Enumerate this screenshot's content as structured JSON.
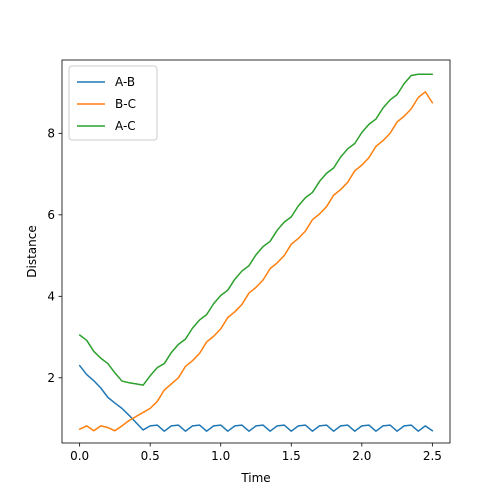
{
  "chart_data": {
    "type": "line",
    "xlabel": "Time",
    "ylabel": "Distance",
    "xlim": [
      -0.125,
      2.625
    ],
    "ylim": [
      0.4,
      9.8
    ],
    "xticks": [
      {
        "value": 0.0,
        "label": "0.0"
      },
      {
        "value": 0.5,
        "label": "0.5"
      },
      {
        "value": 1.0,
        "label": "1.0"
      },
      {
        "value": 1.5,
        "label": "1.5"
      },
      {
        "value": 2.0,
        "label": "2.0"
      },
      {
        "value": 2.5,
        "label": "2.5"
      }
    ],
    "yticks": [
      {
        "value": 2,
        "label": "2"
      },
      {
        "value": 4,
        "label": "4"
      },
      {
        "value": 6,
        "label": "6"
      },
      {
        "value": 8,
        "label": "8"
      }
    ],
    "grid": false,
    "legend_position": "top-left",
    "x": [
      0.0,
      0.05,
      0.1,
      0.15,
      0.2,
      0.25,
      0.3,
      0.35,
      0.4,
      0.45,
      0.5,
      0.55,
      0.6,
      0.65,
      0.7,
      0.75,
      0.8,
      0.85,
      0.9,
      0.95,
      1.0,
      1.05,
      1.1,
      1.15,
      1.2,
      1.25,
      1.3,
      1.35,
      1.4,
      1.45,
      1.5,
      1.55,
      1.6,
      1.65,
      1.7,
      1.75,
      1.8,
      1.85,
      1.9,
      1.95,
      2.0,
      2.05,
      2.1,
      2.15,
      2.2,
      2.25,
      2.3,
      2.35,
      2.4,
      2.45,
      2.5
    ],
    "series": [
      {
        "name": "A-B",
        "color": "#1f77b4",
        "values": [
          2.3,
          2.08,
          1.93,
          1.75,
          1.52,
          1.38,
          1.25,
          1.08,
          0.9,
          0.72,
          0.82,
          0.84,
          0.69,
          0.82,
          0.84,
          0.69,
          0.82,
          0.84,
          0.69,
          0.82,
          0.84,
          0.69,
          0.82,
          0.84,
          0.69,
          0.82,
          0.84,
          0.69,
          0.82,
          0.84,
          0.69,
          0.82,
          0.84,
          0.69,
          0.82,
          0.84,
          0.69,
          0.82,
          0.84,
          0.69,
          0.82,
          0.84,
          0.69,
          0.82,
          0.84,
          0.69,
          0.82,
          0.84,
          0.69,
          0.82,
          0.7
        ]
      },
      {
        "name": "B-C",
        "color": "#ff7f0e",
        "values": [
          0.74,
          0.82,
          0.7,
          0.82,
          0.78,
          0.7,
          0.82,
          0.95,
          1.05,
          1.15,
          1.25,
          1.42,
          1.7,
          1.85,
          2.0,
          2.28,
          2.42,
          2.6,
          2.88,
          3.02,
          3.2,
          3.48,
          3.62,
          3.8,
          4.08,
          4.22,
          4.4,
          4.68,
          4.82,
          5.0,
          5.28,
          5.42,
          5.6,
          5.88,
          6.02,
          6.2,
          6.48,
          6.62,
          6.8,
          7.08,
          7.22,
          7.4,
          7.68,
          7.82,
          8.0,
          8.28,
          8.42,
          8.6,
          8.88,
          9.02,
          8.75
        ]
      },
      {
        "name": "A-C",
        "color": "#2ca02c",
        "values": [
          3.05,
          2.92,
          2.65,
          2.48,
          2.35,
          2.12,
          1.92,
          1.88,
          1.85,
          1.82,
          2.05,
          2.25,
          2.35,
          2.62,
          2.82,
          2.95,
          3.22,
          3.42,
          3.55,
          3.82,
          4.02,
          4.15,
          4.42,
          4.62,
          4.75,
          5.02,
          5.22,
          5.35,
          5.62,
          5.82,
          5.95,
          6.22,
          6.42,
          6.55,
          6.82,
          7.02,
          7.15,
          7.42,
          7.62,
          7.75,
          8.02,
          8.22,
          8.35,
          8.62,
          8.82,
          8.95,
          9.22,
          9.42,
          9.45,
          9.45,
          9.45
        ]
      }
    ]
  }
}
